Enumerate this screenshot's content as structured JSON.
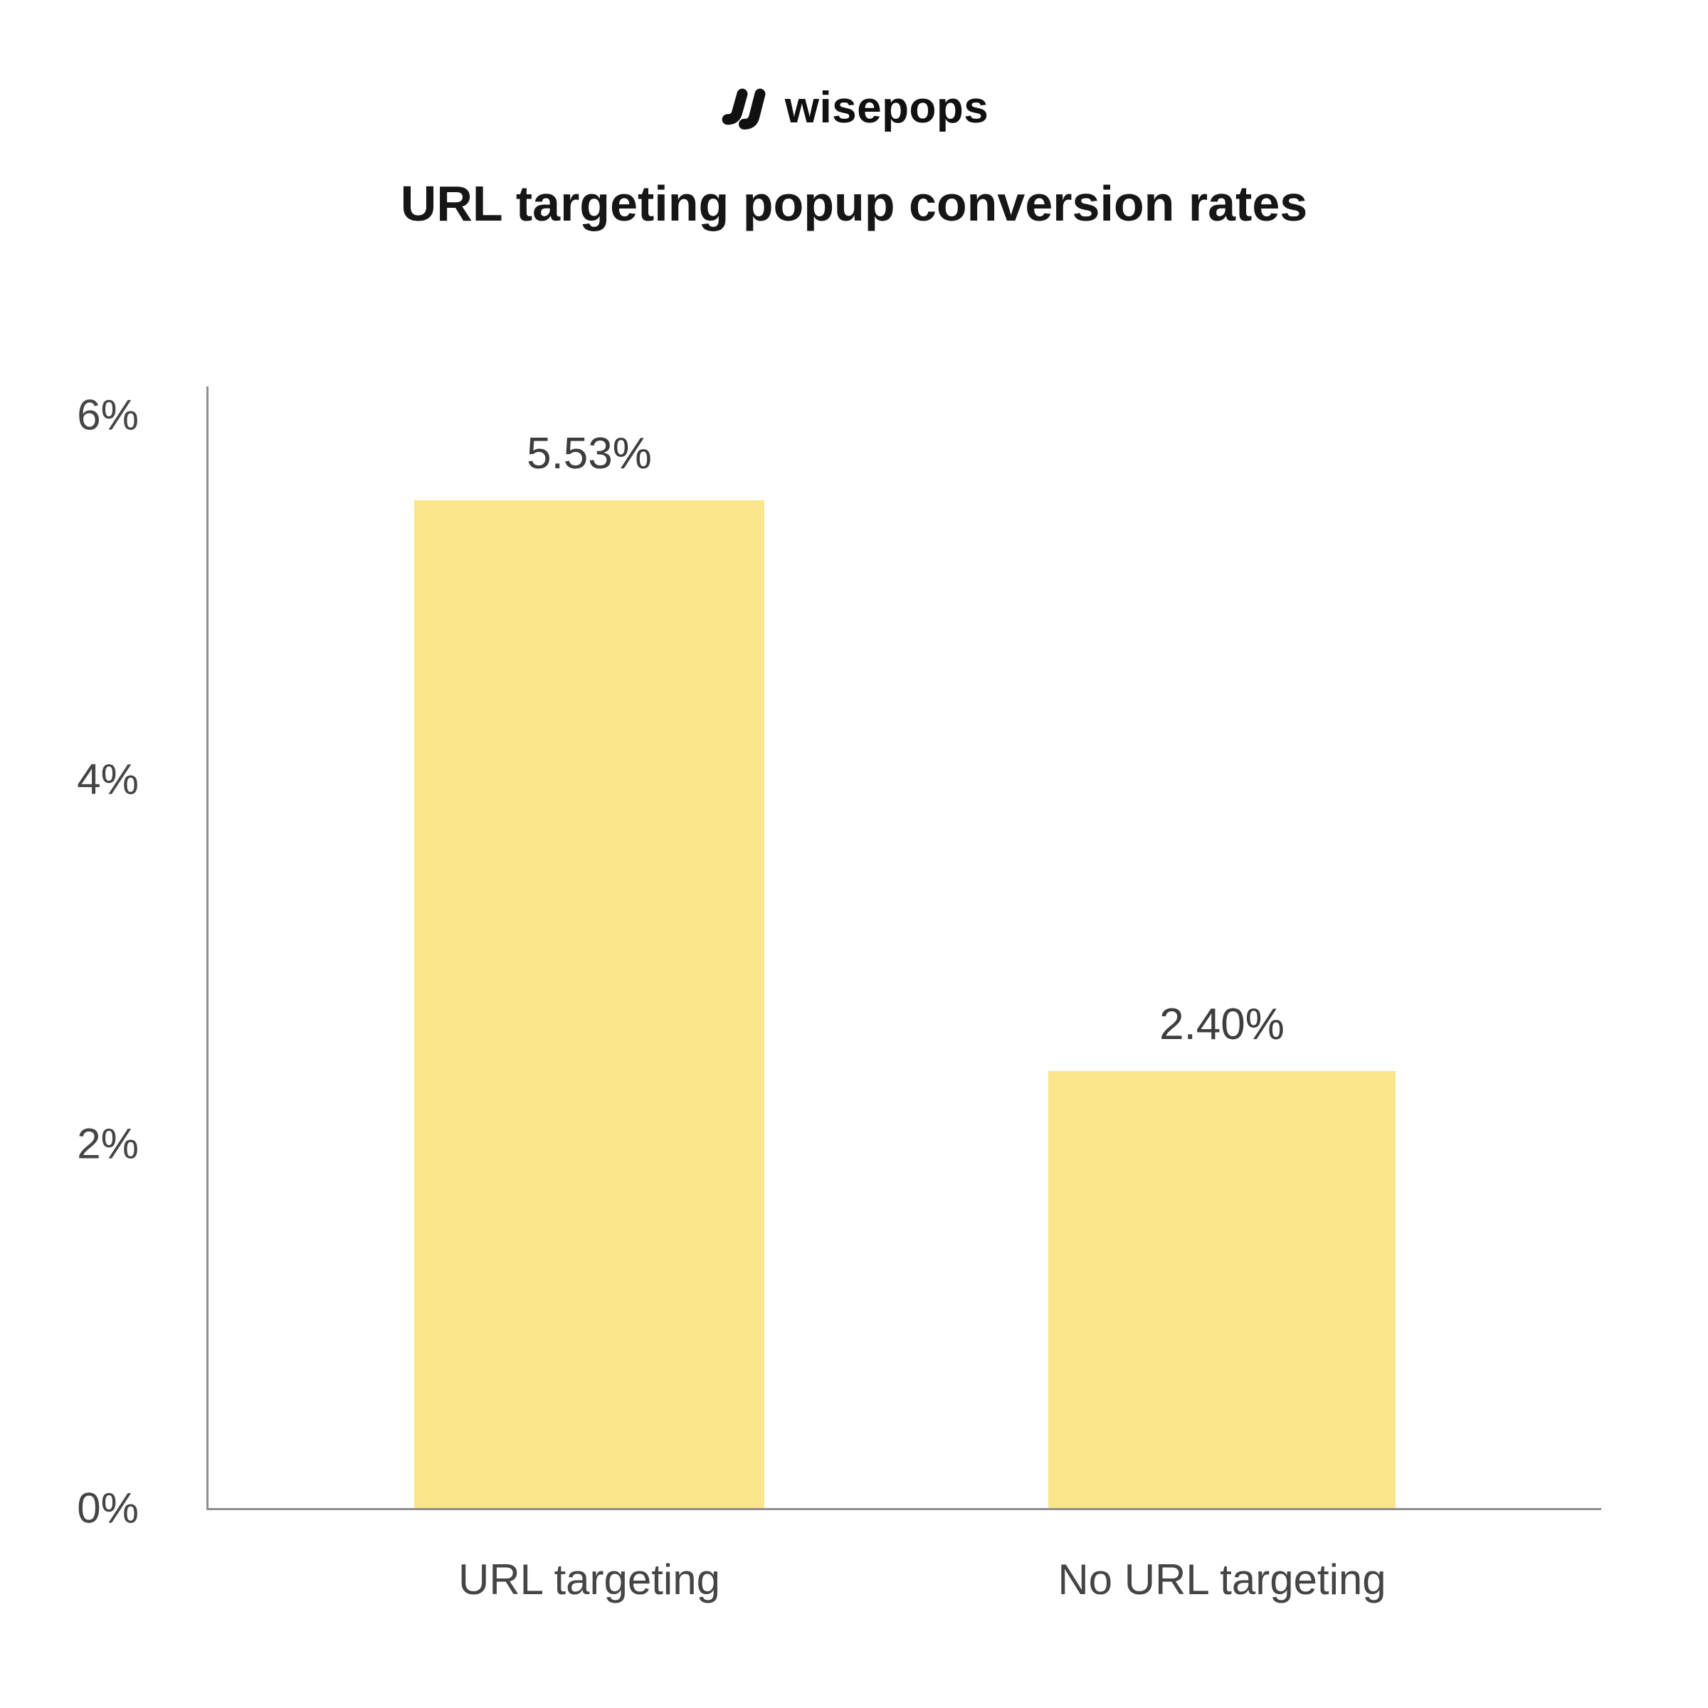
{
  "header": {
    "brand": "wisepops",
    "logo_icon": "wisepops-mark-icon"
  },
  "chart_data": {
    "type": "bar",
    "title": "URL targeting popup conversion rates",
    "categories": [
      "URL targeting",
      "No URL targeting"
    ],
    "values": [
      5.53,
      2.4
    ],
    "value_labels": [
      "5.53%",
      "2.40%"
    ],
    "xlabel": "",
    "ylabel": "",
    "ylim": [
      0,
      6
    ],
    "yticks": [
      "6%",
      "4%",
      "2%",
      "0%"
    ],
    "grid": false,
    "legend": false,
    "bar_color": "#FAE58A",
    "axis_color": "#8F8F8F",
    "title_color": "#161616",
    "label_color": "#454545"
  }
}
